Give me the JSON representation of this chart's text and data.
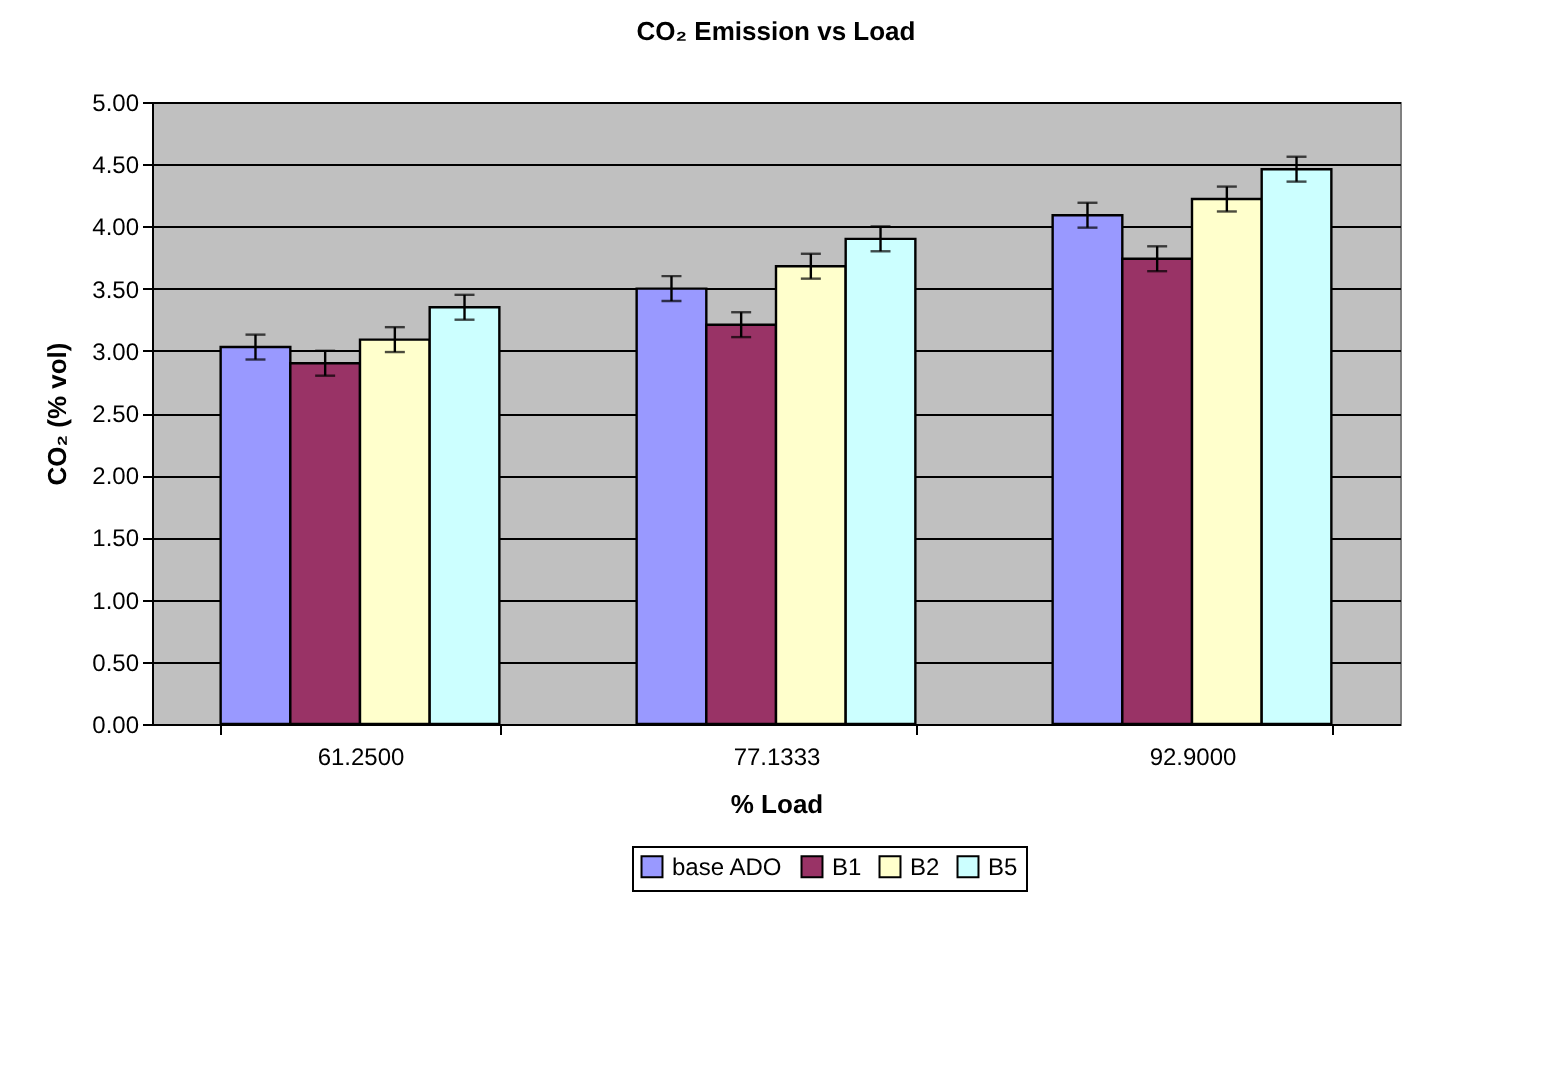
{
  "chart_data": {
    "type": "bar",
    "title": "CO₂ Emission vs Load",
    "xlabel": "% Load",
    "ylabel": "CO₂ (% vol)",
    "categories": [
      "61.2500",
      "77.1333",
      "92.9000"
    ],
    "series": [
      {
        "name": "base ADO",
        "color": "#9999ff",
        "values": [
          3.03,
          3.5,
          4.09
        ],
        "errors": [
          0.1,
          0.1,
          0.1
        ]
      },
      {
        "name": "B1",
        "color": "#993366",
        "values": [
          2.9,
          3.21,
          3.74
        ],
        "errors": [
          0.1,
          0.1,
          0.1
        ]
      },
      {
        "name": "B2",
        "color": "#ffffcc",
        "values": [
          3.09,
          3.68,
          4.22
        ],
        "errors": [
          0.1,
          0.1,
          0.1
        ]
      },
      {
        "name": "B5",
        "color": "#ccffff",
        "values": [
          3.35,
          3.9,
          4.46
        ],
        "errors": [
          0.1,
          0.1,
          0.1
        ]
      }
    ],
    "ylim": [
      0,
      5
    ],
    "yticks": [
      {
        "value": 0,
        "label": "0.00"
      },
      {
        "value": 0.5,
        "label": "0.50"
      },
      {
        "value": 1,
        "label": "1.00"
      },
      {
        "value": 1.5,
        "label": "1.50"
      },
      {
        "value": 2,
        "label": "2.00"
      },
      {
        "value": 2.5,
        "label": "2.50"
      },
      {
        "value": 3,
        "label": "3.00"
      },
      {
        "value": 3.5,
        "label": "3.50"
      },
      {
        "value": 4,
        "label": "4.00"
      },
      {
        "value": 4.5,
        "label": "4.50"
      },
      {
        "value": 5,
        "label": "5.00"
      }
    ],
    "grid": "y",
    "legend": "bottom"
  }
}
